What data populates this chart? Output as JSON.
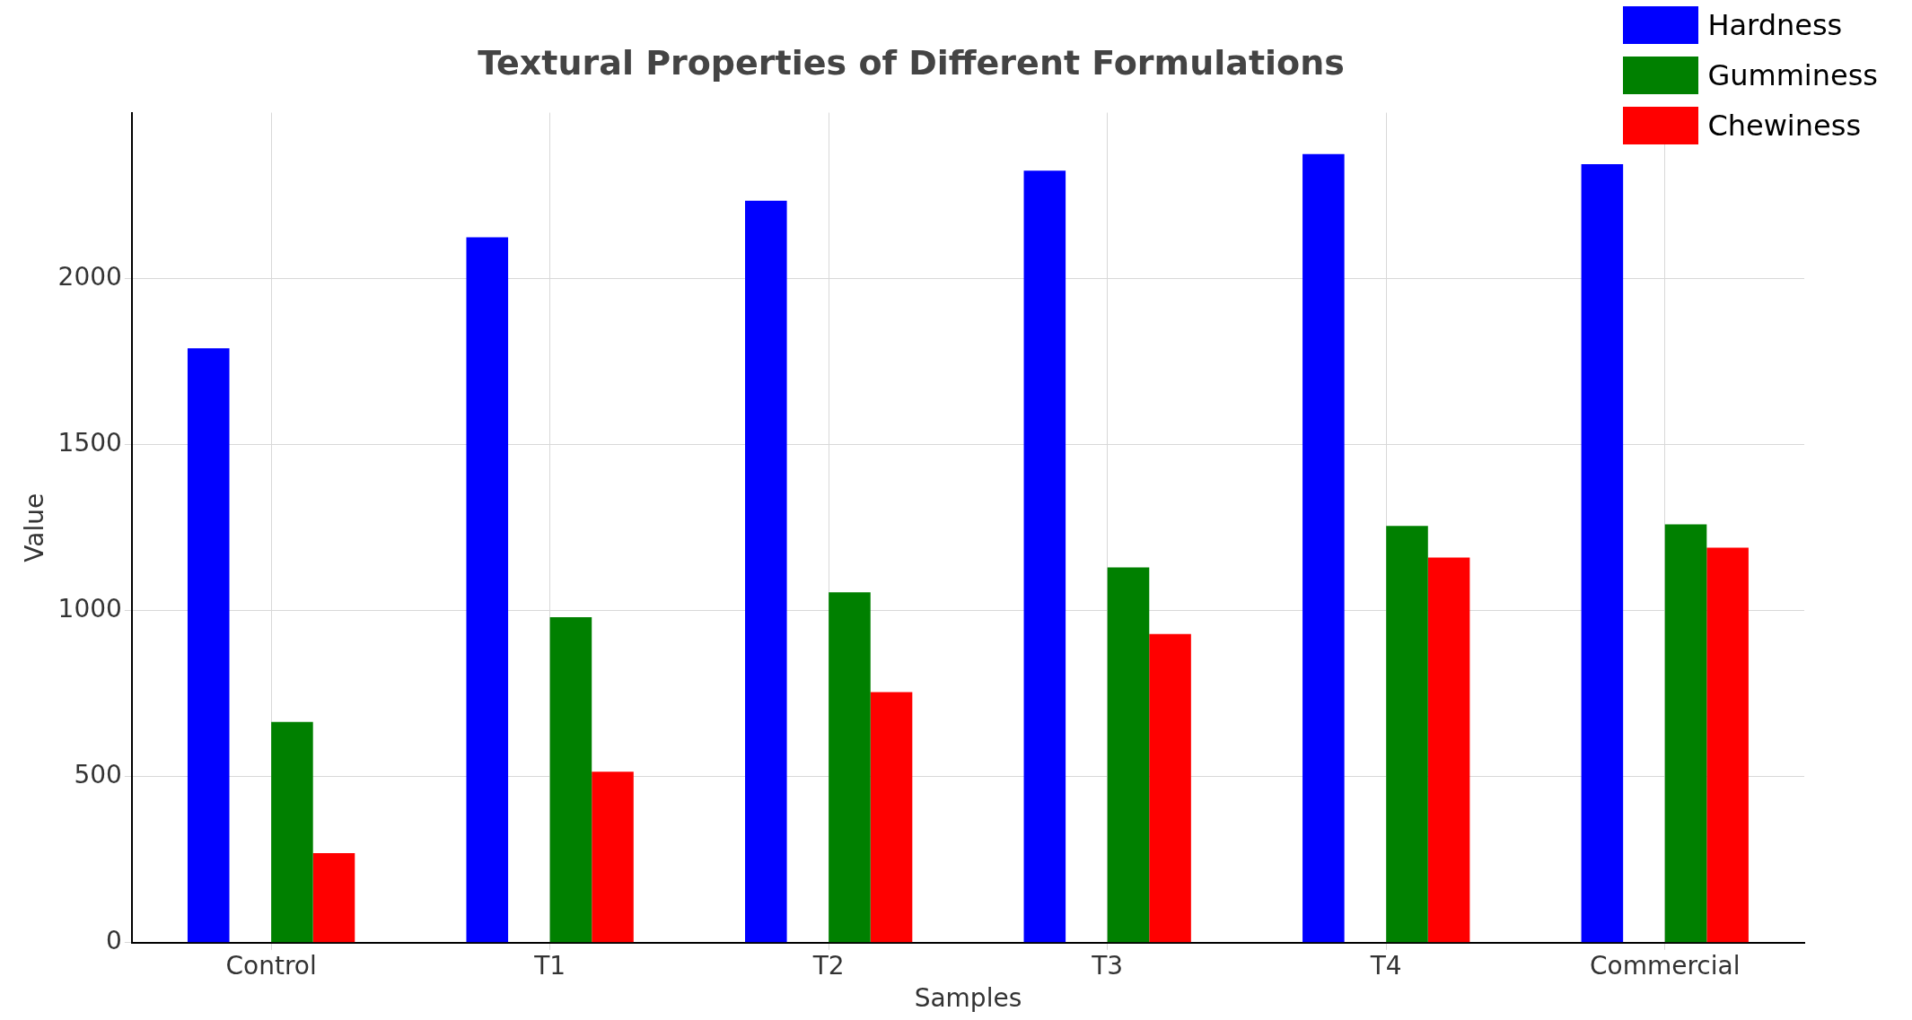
{
  "chart_data": {
    "type": "bar",
    "title": "Textural Properties of Different Formulations",
    "xlabel": "Samples",
    "ylabel": "Value",
    "categories": [
      "Control",
      "T1",
      "T2",
      "T3",
      "T4",
      "Commercial"
    ],
    "series": [
      {
        "name": "Hardness",
        "color": "#0000ff",
        "values": [
          1790,
          2125,
          2235,
          2325,
          2375,
          2345
        ]
      },
      {
        "values": [
          null,
          null,
          null,
          null,
          null,
          null
        ]
      },
      {
        "name": "Gumminess",
        "color": "#008000",
        "values": [
          665,
          980,
          1055,
          1130,
          1255,
          1260
        ]
      },
      {
        "name": "Chewiness",
        "color": "#ff0000",
        "values": [
          270,
          515,
          755,
          930,
          1160,
          1190
        ]
      }
    ],
    "ylim": [
      0,
      2500
    ],
    "yticks": [
      0,
      500,
      1000,
      1500,
      2000
    ],
    "grid": true,
    "legend": "top right"
  }
}
